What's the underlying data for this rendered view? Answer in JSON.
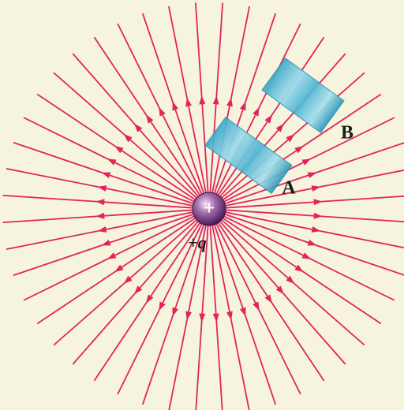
{
  "charge": {
    "symbol": "+",
    "label": "+q"
  },
  "surfaces": [
    {
      "label": "A"
    },
    {
      "label": "B"
    }
  ]
}
